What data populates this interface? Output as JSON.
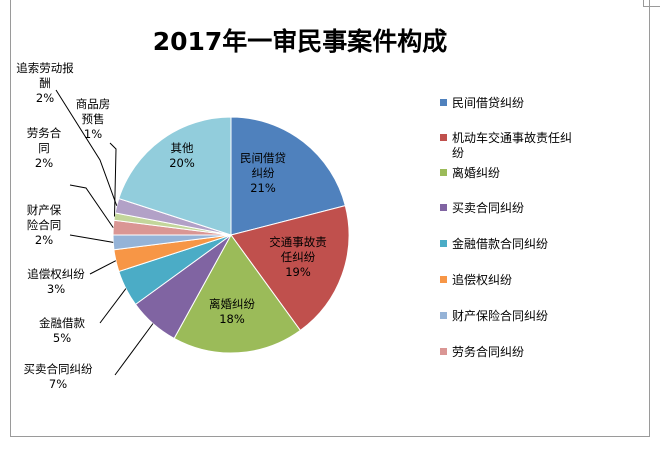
{
  "chart_data": {
    "type": "pie",
    "title": "2017年一审民事案件构成",
    "categories": [
      "民间借贷纠纷",
      "机动车交通事故责任纠纷",
      "离婚纠纷",
      "买卖合同纠纷",
      "金融借款合同纠纷",
      "追偿权纠纷",
      "财产保险合同纠纷",
      "劳务合同纠纷",
      "商品房预售",
      "追索劳动报酬",
      "其他"
    ],
    "values": [
      21,
      19,
      18,
      7,
      5,
      3,
      2,
      2,
      1,
      2,
      20
    ],
    "colors": [
      "#4F81BD",
      "#C0504D",
      "#9BBB59",
      "#8064A2",
      "#4BACC6",
      "#F79646",
      "#95B3D7",
      "#DA9694",
      "#C3D69B",
      "#B2A1C7",
      "#92CDDC"
    ],
    "data_labels": [
      {
        "lines": [
          "民间借贷",
          "纠纷",
          "21%"
        ]
      },
      {
        "lines": [
          "交通事故责",
          "任纠纷",
          "19%"
        ]
      },
      {
        "lines": [
          "离婚纠纷",
          "18%"
        ]
      },
      {
        "lines": [
          "买卖合同纠纷",
          "7%"
        ]
      },
      {
        "lines": [
          "金融借款",
          "5%"
        ]
      },
      {
        "lines": [
          "追偿权纠纷",
          "3%"
        ]
      },
      {
        "lines": [
          "财产保",
          "险合同",
          "2%"
        ]
      },
      {
        "lines": [
          "劳务合",
          "同",
          "2%"
        ]
      },
      {
        "lines": [
          "商品房",
          "预售",
          "1%"
        ]
      },
      {
        "lines": [
          "追索劳动报",
          "酬",
          "2%"
        ]
      },
      {
        "lines": [
          "其他",
          "20%"
        ]
      }
    ],
    "legend": {
      "position": "right",
      "entries": [
        "民间借贷纠纷",
        "机动车交通事故责任纠",
        "纷",
        "离婚纠纷",
        "买卖合同纠纷",
        "金融借款合同纠纷",
        "追偿权纠纷",
        "财产保险合同纠纷",
        "劳务合同纠纷"
      ]
    }
  }
}
